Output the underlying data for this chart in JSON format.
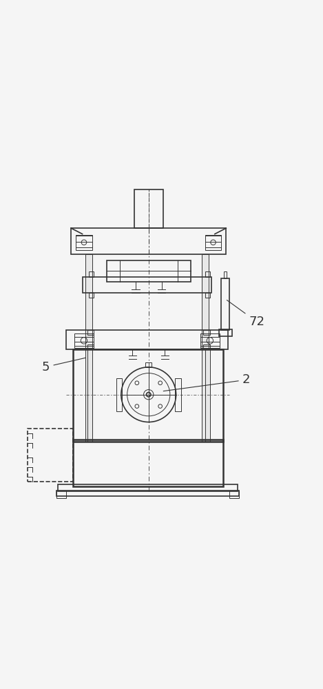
{
  "bg_color": "#f5f5f5",
  "line_color": "#333333",
  "lw_main": 1.2,
  "lw_thin": 0.7,
  "lw_thick": 1.8,
  "fig_width": 4.69,
  "fig_height": 10.0,
  "labels": {
    "5": [
      0.13,
      0.42
    ],
    "72": [
      0.77,
      0.56
    ],
    "2": [
      0.75,
      0.38
    ]
  }
}
